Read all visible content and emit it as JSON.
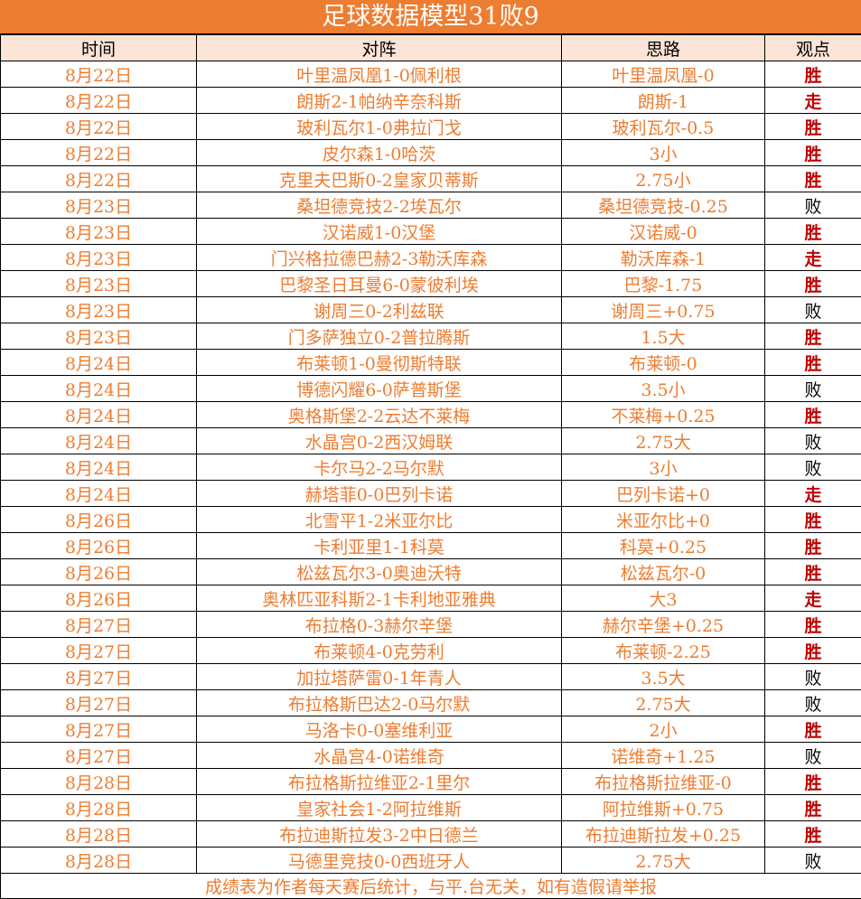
{
  "title": "足球数据模型31败9",
  "headers": [
    "时间",
    "对阵",
    "思路",
    "观点"
  ],
  "colors": {
    "accent": "#ED7D31",
    "header_bg": "#FCE4D6",
    "win": "#C00000",
    "lose": "#000000"
  },
  "rows": [
    [
      "8月22日",
      "叶里温凤凰1-0佩利根",
      "叶里温凤凰-0",
      "胜"
    ],
    [
      "8月22日",
      "朗斯2-1帕纳辛奈科斯",
      "朗斯-1",
      "走"
    ],
    [
      "8月22日",
      "玻利瓦尔1-0弗拉门戈",
      "玻利瓦尔-0.5",
      "胜"
    ],
    [
      "8月22日",
      "皮尔森1-0哈茨",
      "3小",
      "胜"
    ],
    [
      "8月22日",
      "克里夫巴斯0-2皇家贝蒂斯",
      "2.75小",
      "胜"
    ],
    [
      "8月23日",
      "桑坦德竞技2-2埃瓦尔",
      "桑坦德竞技-0.25",
      "败"
    ],
    [
      "8月23日",
      "汉诺威1-0汉堡",
      "汉诺威-0",
      "胜"
    ],
    [
      "8月23日",
      "门兴格拉德巴赫2-3勒沃库森",
      "勒沃库森-1",
      "走"
    ],
    [
      "8月23日",
      "巴黎圣日耳曼6-0蒙彼利埃",
      "巴黎-1.75",
      "胜"
    ],
    [
      "8月23日",
      "谢周三0-2利兹联",
      "谢周三+0.75",
      "败"
    ],
    [
      "8月23日",
      "门多萨独立0-2普拉腾斯",
      "1.5大",
      "胜"
    ],
    [
      "8月24日",
      "布莱顿1-0曼彻斯特联",
      "布莱顿-0",
      "胜"
    ],
    [
      "8月24日",
      "博德闪耀6-0萨普斯堡",
      "3.5小",
      "败"
    ],
    [
      "8月24日",
      "奥格斯堡2-2云达不莱梅",
      "不莱梅+0.25",
      "胜"
    ],
    [
      "8月24日",
      "水晶宫0-2西汉姆联",
      "2.75大",
      "败"
    ],
    [
      "8月24日",
      "卡尔马2-2马尔默",
      "3小",
      "败"
    ],
    [
      "8月24日",
      "赫塔菲0-0巴列卡诺",
      "巴列卡诺+0",
      "走"
    ],
    [
      "8月26日",
      "北雪平1-2米亚尔比",
      "米亚尔比+0",
      "胜"
    ],
    [
      "8月26日",
      "卡利亚里1-1科莫",
      "科莫+0.25",
      "胜"
    ],
    [
      "8月26日",
      "松兹瓦尔3-0奥迪沃特",
      "松兹瓦尔-0",
      "胜"
    ],
    [
      "8月26日",
      "奥林匹亚科斯2-1卡利地亚雅典",
      "大3",
      "走"
    ],
    [
      "8月27日",
      "布拉格0-3赫尔辛堡",
      "赫尔辛堡+0.25",
      "胜"
    ],
    [
      "8月27日",
      "布莱顿4-0克劳利",
      "布莱顿-2.25",
      "胜"
    ],
    [
      "8月27日",
      "加拉塔萨雷0-1年青人",
      "3.5大",
      "败"
    ],
    [
      "8月27日",
      "布拉格斯巴达2-0马尔默",
      "2.75大",
      "败"
    ],
    [
      "8月27日",
      "马洛卡0-0塞维利亚",
      "2小",
      "胜"
    ],
    [
      "8月27日",
      "水晶宫4-0诺维奇",
      "诺维奇+1.25",
      "败"
    ],
    [
      "8月28日",
      "布拉格斯拉维亚2-1里尔",
      "布拉格斯拉维亚-0",
      "胜"
    ],
    [
      "8月28日",
      "皇家社会1-2阿拉维斯",
      "阿拉维斯+0.75",
      "胜"
    ],
    [
      "8月28日",
      "布拉迪斯拉发3-2中日德兰",
      "布拉迪斯拉发+0.25",
      "胜"
    ],
    [
      "8月28日",
      "马德里竞技0-0西班牙人",
      "2.75大",
      "败"
    ]
  ],
  "footer": "成绩表为作者每天赛后统计，与平.台无关，如有造假请举报"
}
